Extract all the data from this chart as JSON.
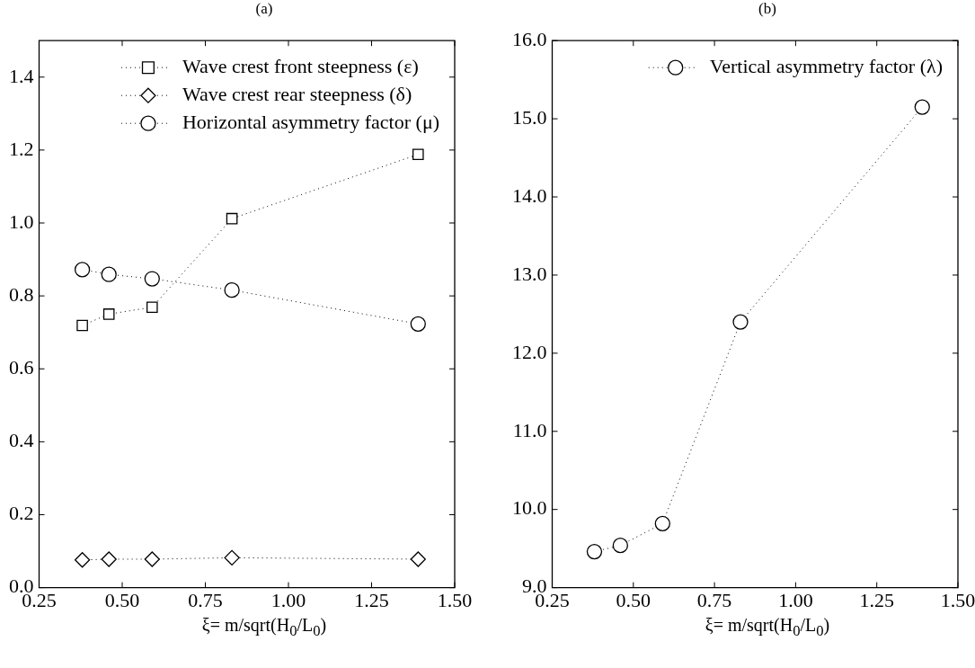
{
  "chart_data": [
    {
      "type": "line",
      "title": "(a)",
      "xlabel": "ξ= m/sqrt(H$_{0}$/L$_{0}$)",
      "x": [
        0.38,
        0.46,
        0.59,
        0.83,
        1.39
      ],
      "series": [
        {
          "name": "Wave crest front steepness (ε)",
          "color": "#000000",
          "marker": "square",
          "values": [
            0.719,
            0.75,
            0.769,
            1.012,
            1.188
          ]
        },
        {
          "name": "Wave crest rear steepness (δ)",
          "color": "#000000",
          "marker": "diamond",
          "values": [
            0.076,
            0.078,
            0.078,
            0.082,
            0.078
          ]
        },
        {
          "name": "Horizontal asymmetry factor (μ)",
          "color": "#000000",
          "marker": "circle",
          "values": [
            0.872,
            0.859,
            0.847,
            0.816,
            0.723
          ]
        }
      ],
      "xlim": [
        0.25,
        1.5
      ],
      "xticks": [
        {
          "value": 0.25,
          "label": "0.25"
        },
        {
          "value": 0.5,
          "label": "0.50"
        },
        {
          "value": 0.75,
          "label": "0.75"
        },
        {
          "value": 1,
          "label": "1.00"
        },
        {
          "value": 1.25,
          "label": "1.25"
        },
        {
          "value": 1.5,
          "label": "1.50"
        }
      ],
      "ylim": [
        0,
        1.5
      ],
      "yticks": [
        {
          "value": 0,
          "label": "0.0"
        },
        0.2,
        0.4,
        0.6,
        0.8,
        {
          "value": 1,
          "label": "1.0"
        },
        1.2,
        1.4
      ],
      "grid": false,
      "legend": "top right",
      "line_style": "dotted"
    },
    {
      "type": "line",
      "title": "(b)",
      "xlabel": "ξ= m/sqrt(H$_{0}$/L$_{0}$)",
      "x": [
        0.38,
        0.46,
        0.59,
        0.83,
        1.39
      ],
      "series": [
        {
          "name": "Vertical asymmetry factor (λ)",
          "color": "#000000",
          "marker": "circle",
          "values": [
            9.46,
            9.54,
            9.82,
            12.4,
            15.15
          ]
        }
      ],
      "xlim": [
        0.25,
        1.5
      ],
      "xticks": [
        {
          "value": 0.25,
          "label": "0.25"
        },
        {
          "value": 0.5,
          "label": "0.50"
        },
        {
          "value": 0.75,
          "label": "0.75"
        },
        {
          "value": 1,
          "label": "1.00"
        },
        {
          "value": 1.25,
          "label": "1.25"
        },
        {
          "value": 1.5,
          "label": "1.50"
        }
      ],
      "ylim": [
        9,
        16
      ],
      "yticks": [
        {
          "value": 9,
          "label": "9.0"
        },
        {
          "value": 10,
          "label": "10.0"
        },
        {
          "value": 11,
          "label": "11.0"
        },
        {
          "value": 12,
          "label": "12.0"
        },
        {
          "value": 13,
          "label": "13.0"
        },
        {
          "value": 14,
          "label": "14.0"
        },
        {
          "value": 15,
          "label": "15.0"
        },
        {
          "value": 16,
          "label": "16.0"
        }
      ],
      "grid": false,
      "legend": "top right",
      "line_style": "dotted"
    }
  ]
}
